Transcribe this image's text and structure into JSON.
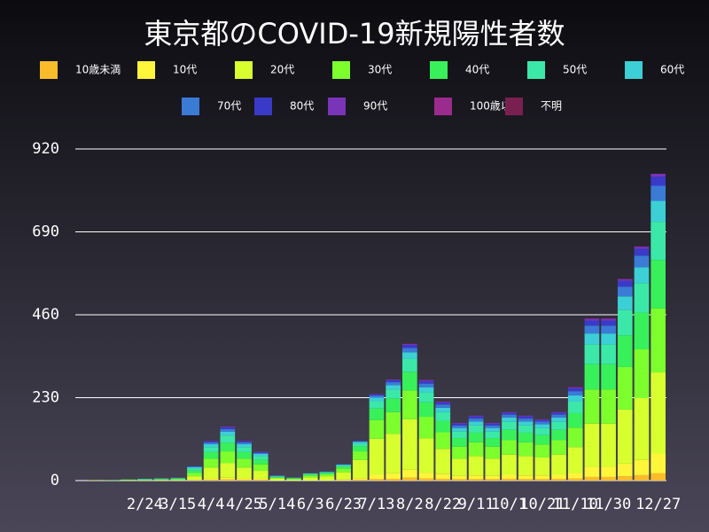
{
  "chart_data": {
    "type": "stacked_bar",
    "title": "東京都のCOVID-19新規陽性者数",
    "categories": [
      null,
      null,
      null,
      "2/24",
      null,
      "3/15",
      null,
      "4/4",
      null,
      "4/25",
      null,
      "5/14",
      null,
      "6/3",
      null,
      "6/23",
      null,
      "7/13",
      null,
      "8/2",
      null,
      "8/22",
      null,
      "9/11",
      null,
      "10/1",
      null,
      "10/21",
      null,
      "11/10",
      null,
      "11/30",
      null,
      null,
      "12/27"
    ],
    "ylim": [
      0,
      920
    ],
    "yticks": [
      0,
      230,
      460,
      690,
      920
    ],
    "grid": true,
    "series": [
      {
        "name": "10歳未満",
        "color": "#fbbc2c",
        "values": [
          0,
          0,
          0,
          0,
          0,
          0,
          1,
          2,
          3,
          2,
          2,
          0,
          0,
          0,
          0,
          1,
          2,
          4,
          5,
          8,
          6,
          5,
          4,
          4,
          4,
          5,
          4,
          4,
          5,
          6,
          10,
          10,
          12,
          15,
          20
        ]
      },
      {
        "name": "10代",
        "color": "#fff53a",
        "values": [
          0,
          0,
          0,
          0,
          0,
          0,
          1,
          4,
          5,
          4,
          3,
          1,
          0,
          1,
          1,
          2,
          5,
          12,
          15,
          22,
          16,
          13,
          9,
          10,
          9,
          11,
          10,
          10,
          11,
          15,
          28,
          28,
          35,
          42,
          55
        ]
      },
      {
        "name": "20代",
        "color": "#d8ff2e",
        "values": [
          1,
          0,
          1,
          1,
          2,
          2,
          10,
          30,
          40,
          30,
          22,
          4,
          3,
          8,
          11,
          20,
          50,
          100,
          110,
          140,
          95,
          70,
          48,
          54,
          48,
          56,
          54,
          50,
          56,
          72,
          120,
          120,
          150,
          172,
          225
        ]
      },
      {
        "name": "30代",
        "color": "#7dff2e",
        "values": [
          0,
          1,
          1,
          1,
          1,
          2,
          9,
          25,
          33,
          25,
          18,
          3,
          2,
          5,
          6,
          10,
          24,
          52,
          60,
          80,
          60,
          46,
          33,
          38,
          33,
          40,
          38,
          36,
          40,
          54,
          95,
          95,
          118,
          135,
          178
        ]
      },
      {
        "name": "40代",
        "color": "#38f05a",
        "values": [
          0,
          0,
          1,
          1,
          1,
          1,
          7,
          18,
          24,
          18,
          13,
          2,
          1,
          3,
          3,
          6,
          14,
          32,
          38,
          52,
          40,
          32,
          24,
          27,
          24,
          29,
          27,
          26,
          29,
          40,
          70,
          70,
          88,
          102,
          134
        ]
      },
      {
        "name": "50代",
        "color": "#3be8a8",
        "values": [
          0,
          0,
          0,
          1,
          1,
          1,
          6,
          14,
          20,
          14,
          10,
          2,
          1,
          2,
          2,
          3,
          8,
          20,
          25,
          36,
          28,
          24,
          18,
          20,
          18,
          22,
          20,
          20,
          22,
          32,
          55,
          55,
          70,
          82,
          106
        ]
      },
      {
        "name": "60代",
        "color": "#3ccfd6",
        "values": [
          0,
          0,
          0,
          1,
          1,
          1,
          3,
          8,
          11,
          8,
          6,
          1,
          1,
          1,
          1,
          2,
          4,
          10,
          12,
          18,
          14,
          12,
          10,
          11,
          10,
          12,
          11,
          10,
          12,
          17,
          30,
          30,
          38,
          44,
          58
        ]
      },
      {
        "name": "70代",
        "color": "#3a7bd6",
        "values": [
          0,
          0,
          0,
          0,
          0,
          1,
          2,
          5,
          7,
          5,
          3,
          1,
          0,
          0,
          1,
          1,
          2,
          6,
          8,
          12,
          10,
          9,
          7,
          8,
          7,
          8,
          8,
          8,
          8,
          12,
          22,
          22,
          27,
          32,
          42
        ]
      },
      {
        "name": "80代",
        "color": "#3a3ac8",
        "values": [
          0,
          0,
          0,
          0,
          0,
          0,
          1,
          3,
          5,
          3,
          2,
          1,
          0,
          0,
          0,
          0,
          1,
          3,
          5,
          8,
          7,
          6,
          5,
          6,
          5,
          5,
          6,
          4,
          5,
          8,
          14,
          14,
          16,
          19,
          25
        ]
      },
      {
        "name": "90代",
        "color": "#7a34b8",
        "values": [
          0,
          0,
          0,
          0,
          0,
          0,
          0,
          1,
          2,
          1,
          1,
          0,
          0,
          0,
          0,
          0,
          0,
          1,
          2,
          3,
          3,
          2,
          2,
          2,
          2,
          2,
          2,
          2,
          2,
          3,
          5,
          5,
          5,
          6,
          8
        ]
      },
      {
        "name": "100歳以上",
        "color": "#9b2c8e",
        "values": [
          0,
          0,
          0,
          0,
          0,
          0,
          0,
          0,
          0,
          0,
          0,
          0,
          0,
          0,
          0,
          0,
          0,
          0,
          0,
          0,
          0,
          0,
          0,
          0,
          0,
          0,
          0,
          0,
          0,
          0,
          0,
          0,
          0,
          0,
          0
        ]
      },
      {
        "name": "不明",
        "color": "#7a2050",
        "values": [
          0,
          0,
          0,
          0,
          0,
          0,
          0,
          0,
          0,
          0,
          0,
          0,
          0,
          0,
          0,
          0,
          0,
          0,
          0,
          1,
          1,
          1,
          0,
          0,
          0,
          0,
          0,
          0,
          0,
          1,
          1,
          1,
          1,
          1,
          0
        ]
      }
    ]
  }
}
